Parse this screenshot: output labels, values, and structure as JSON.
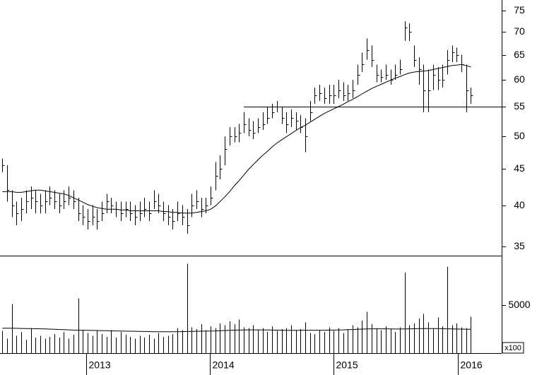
{
  "chart_data": {
    "type": "ohlc",
    "high": [
      46.5,
      45.5,
      42,
      40.5,
      41,
      42,
      42.5,
      42,
      41.5,
      42,
      42.5,
      42,
      41.5,
      42,
      42.5,
      42,
      41,
      40,
      39.5,
      40,
      39.5,
      40.5,
      41.5,
      41,
      40.5,
      40.5,
      40.5,
      40.5,
      40,
      40.5,
      41,
      40.5,
      42,
      41.5,
      40.5,
      40,
      39.5,
      40.5,
      40,
      39.5,
      41.5,
      42,
      41,
      41,
      42.5,
      46,
      47,
      50,
      51.5,
      51.5,
      52,
      54,
      53,
      52.5,
      53,
      54,
      55,
      55.5,
      56,
      55,
      54,
      54.5,
      54,
      53.5,
      53,
      56,
      58.5,
      59,
      58.5,
      59,
      59,
      60,
      59.5,
      59,
      60,
      63,
      65.5,
      68.5,
      67,
      63,
      62,
      63,
      62,
      63,
      64,
      72.5,
      72,
      67,
      64.5,
      63,
      62,
      63,
      62.5,
      63,
      66,
      67,
      66.5,
      65,
      63,
      58.5
    ],
    "low": [
      44.5,
      40.5,
      38.5,
      37.5,
      38,
      39,
      39.5,
      39,
      39,
      39,
      40,
      39.5,
      39,
      39.5,
      40,
      39.5,
      38,
      37.5,
      37,
      37.5,
      37,
      38,
      39,
      39,
      38.5,
      38,
      38.5,
      38,
      37.5,
      38,
      38.5,
      38,
      39.5,
      39,
      38,
      37.5,
      37,
      38,
      37.5,
      36.5,
      38.5,
      39.5,
      38.5,
      39,
      40,
      42,
      43.5,
      45.5,
      48.5,
      49,
      49,
      50.5,
      50,
      49.5,
      50.5,
      51,
      52,
      53,
      54,
      52,
      50.5,
      51.5,
      51,
      50.5,
      47.5,
      52.5,
      55.5,
      56,
      55.5,
      55.5,
      55.5,
      56.5,
      56,
      56,
      56.5,
      59,
      61.5,
      64,
      62.5,
      59.5,
      59.5,
      60,
      59,
      60,
      61,
      68,
      68,
      62.5,
      59,
      54,
      54,
      58,
      58,
      58.5,
      61,
      63.5,
      63.5,
      61.5,
      54,
      55.5
    ],
    "close": [
      45.5,
      42,
      40,
      39,
      39.5,
      40.5,
      41,
      40.5,
      40,
      40.5,
      41,
      40.5,
      40,
      40.5,
      41,
      40.5,
      39,
      38.5,
      38,
      38.5,
      38,
      39,
      40.5,
      40,
      39.5,
      39,
      39.5,
      39,
      38.5,
      39,
      39.5,
      39,
      40.5,
      40,
      39,
      38.5,
      38,
      39,
      38.5,
      37.5,
      40,
      40.5,
      39.5,
      40,
      41,
      44,
      45,
      48,
      50,
      50,
      50.5,
      52,
      51,
      50.5,
      51.5,
      52,
      53,
      54,
      55,
      53,
      52,
      53,
      52.5,
      51.5,
      50,
      54,
      57,
      57.5,
      56.5,
      57,
      57,
      58,
      57,
      57.5,
      58,
      61,
      63,
      66,
      64,
      61,
      60.5,
      61,
      60,
      61,
      62,
      71,
      70,
      64,
      62,
      58,
      58,
      61,
      60,
      60,
      64,
      65.5,
      65,
      63,
      58,
      57
    ],
    "moving_average": [
      41.8,
      41.8,
      41.8,
      41.7,
      41.7,
      41.8,
      41.9,
      42,
      42,
      41.9,
      41.8,
      41.7,
      41.6,
      41.5,
      41.3,
      41,
      40.7,
      40.4,
      40.1,
      39.9,
      39.7,
      39.6,
      39.5,
      39.5,
      39.5,
      39.4,
      39.4,
      39.3,
      39.3,
      39.3,
      39.3,
      39.3,
      39.3,
      39.3,
      39.2,
      39.2,
      39.1,
      39.1,
      39,
      39,
      39,
      39.1,
      39.2,
      39.3,
      39.5,
      39.9,
      40.5,
      41.1,
      41.8,
      42.6,
      43.3,
      44.1,
      44.9,
      45.6,
      46.3,
      47,
      47.6,
      48.3,
      48.9,
      49.4,
      49.9,
      50.4,
      50.9,
      51.4,
      51.8,
      52.3,
      52.8,
      53.3,
      53.8,
      54.2,
      54.6,
      55,
      55.4,
      55.9,
      56.3,
      56.8,
      57.3,
      57.8,
      58.3,
      58.7,
      59.1,
      59.5,
      59.9,
      60.3,
      60.6,
      61,
      61.3,
      61.5,
      61.6,
      61.7,
      61.8,
      62,
      62.2,
      62.4,
      62.6,
      62.8,
      62.9,
      63,
      62.8,
      62.5
    ],
    "volume": [
      2300,
      1500,
      5100,
      1800,
      2200,
      1400,
      2600,
      1600,
      1800,
      1500,
      1700,
      2000,
      1600,
      2200,
      1500,
      1900,
      5700,
      2400,
      2100,
      1800,
      2300,
      2000,
      1700,
      2400,
      1600,
      2200,
      1900,
      1700,
      1500,
      1800,
      1600,
      1900,
      1500,
      2100,
      1700,
      1800,
      2000,
      2600,
      2400,
      9300,
      2700,
      2500,
      3000,
      2400,
      2800,
      2600,
      3100,
      2900,
      3300,
      3000,
      3500,
      2700,
      2600,
      2900,
      2400,
      2600,
      2200,
      2800,
      2300,
      2500,
      2600,
      2900,
      2400,
      2500,
      3200,
      2100,
      2000,
      2400,
      2200,
      2700,
      2300,
      2600,
      2100,
      2500,
      2900,
      2700,
      3400,
      4300,
      3000,
      2600,
      2400,
      2800,
      2500,
      2200,
      2700,
      8400,
      2900,
      3100,
      3600,
      4100,
      3200,
      2600,
      3700,
      2800,
      9000,
      2900,
      3100,
      2700,
      2600,
      3800
    ],
    "volume_average": [
      2600,
      2600,
      2590,
      2580,
      2570,
      2560,
      2550,
      2540,
      2530,
      2520,
      2500,
      2480,
      2460,
      2440,
      2420,
      2400,
      2390,
      2380,
      2370,
      2360,
      2350,
      2340,
      2330,
      2320,
      2310,
      2300,
      2290,
      2280,
      2270,
      2260,
      2250,
      2240,
      2230,
      2220,
      2220,
      2220,
      2220,
      2230,
      2240,
      2250,
      2260,
      2270,
      2280,
      2290,
      2300,
      2310,
      2330,
      2350,
      2370,
      2390,
      2400,
      2410,
      2420,
      2420,
      2420,
      2420,
      2410,
      2400,
      2390,
      2380,
      2370,
      2370,
      2370,
      2370,
      2380,
      2380,
      2380,
      2380,
      2380,
      2390,
      2400,
      2410,
      2420,
      2440,
      2460,
      2480,
      2500,
      2520,
      2530,
      2530,
      2530,
      2530,
      2520,
      2510,
      2510,
      2520,
      2530,
      2540,
      2550,
      2560,
      2560,
      2560,
      2550,
      2540,
      2530,
      2520,
      2510,
      2500,
      2490,
      2480
    ],
    "reference_line": {
      "value": 55,
      "start": 51
    },
    "xlim": [
      -0.5,
      105.5
    ],
    "xticks": [
      {
        "value": 17.7,
        "label": "2013"
      },
      {
        "value": 43.8,
        "label": "2014"
      },
      {
        "value": 69.9,
        "label": "2015"
      },
      {
        "value": 96.2,
        "label": "2016"
      }
    ],
    "ylim": [
      34,
      77.6
    ],
    "yticks": [
      35,
      40,
      45,
      50,
      55,
      60,
      65,
      70,
      75
    ],
    "log_scale": true,
    "y2lim": [
      0,
      10150
    ],
    "y2ticks": [
      5000
    ],
    "volume_unit_label": "x100",
    "color": "#000000"
  }
}
